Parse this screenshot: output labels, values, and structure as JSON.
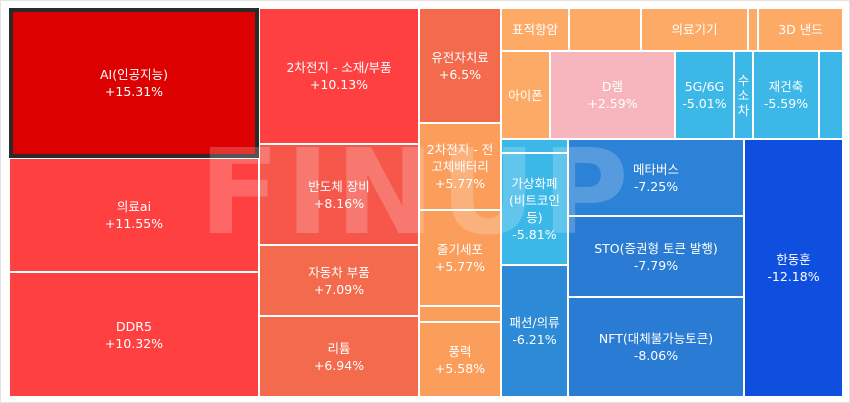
{
  "watermark": "FINUP",
  "chart_data": {
    "type": "treemap",
    "items": [
      {
        "label": "AI(인공지능)",
        "change": "+15.31%",
        "value": 15.31,
        "color": "#dd0000",
        "text": "#ffffff",
        "selected": true
      },
      {
        "label": "의료ai",
        "change": "+11.55%",
        "value": 11.55,
        "color": "#ff4040",
        "text": "#ffffff"
      },
      {
        "label": "DDR5",
        "change": "+10.32%",
        "value": 10.32,
        "color": "#ff4040",
        "text": "#ffffff"
      },
      {
        "label": "2차전지 - 소재/부품",
        "change": "+10.13%",
        "value": 10.13,
        "color": "#ff4040",
        "text": "#ffffff"
      },
      {
        "label": "반도체 장비",
        "change": "+8.16%",
        "value": 8.16,
        "color": "#f6574a",
        "text": "#ffffff"
      },
      {
        "label": "자동차 부품",
        "change": "+7.09%",
        "value": 7.09,
        "color": "#f46a4c",
        "text": "#ffffff"
      },
      {
        "label": "리튬",
        "change": "+6.94%",
        "value": 6.94,
        "color": "#f46a4c",
        "text": "#ffffff"
      },
      {
        "label": "유전자치료",
        "change": "+6.5%",
        "value": 6.5,
        "color": "#f46a4c",
        "text": "#ffffff"
      },
      {
        "label": "2차전지 - 전고체배터리",
        "change": "+5.77%",
        "value": 5.77,
        "color": "#fb9e5c",
        "text": "#ffffff"
      },
      {
        "label": "줄기세포",
        "change": "+5.77%",
        "value": 5.77,
        "color": "#fb9e5c",
        "text": "#ffffff"
      },
      {
        "label": "",
        "change": "",
        "value": null,
        "color": "#fb9e5c",
        "text": "#ffffff"
      },
      {
        "label": "풍력",
        "change": "+5.58%",
        "value": 5.58,
        "color": "#fb9e5c",
        "text": "#ffffff"
      },
      {
        "label": "표적항암",
        "change": "",
        "value": null,
        "color": "#fcaa66",
        "text": "#ffffff"
      },
      {
        "label": "",
        "change": "",
        "value": null,
        "color": "#fcaa66",
        "text": "#ffffff"
      },
      {
        "label": "의료기기",
        "change": "",
        "value": null,
        "color": "#fcaa66",
        "text": "#ffffff"
      },
      {
        "label": "",
        "change": "",
        "value": null,
        "color": "#fcaa66",
        "text": "#ffffff"
      },
      {
        "label": "3D 낸드",
        "change": "",
        "value": null,
        "color": "#fcaa66",
        "text": "#ffffff"
      },
      {
        "label": "아이폰",
        "change": "",
        "value": null,
        "color": "#fcaa66",
        "text": "#ffffff"
      },
      {
        "label": "D램",
        "change": "+2.59%",
        "value": 2.59,
        "color": "#f7b6bd",
        "text": "#ffffff"
      },
      {
        "label": "5G/6G",
        "change": "-5.01%",
        "value": -5.01,
        "color": "#3bb8e8",
        "text": "#ffffff"
      },
      {
        "label": "수소차",
        "change": "",
        "value": null,
        "color": "#3bb8e8",
        "text": "#ffffff"
      },
      {
        "label": "재건축",
        "change": "-5.59%",
        "value": -5.59,
        "color": "#3bb8e8",
        "text": "#ffffff"
      },
      {
        "label": "",
        "change": "",
        "value": null,
        "color": "#3bb8e8",
        "text": "#ffffff"
      },
      {
        "label": "가상화폐(비트코인 등)",
        "change": "-5.81%",
        "value": -5.81,
        "color": "#3bb8e8",
        "text": "#ffffff"
      },
      {
        "label": "",
        "change": "",
        "value": null,
        "color": "#3bb8e8",
        "text": "#ffffff"
      },
      {
        "label": "패션/의류",
        "change": "-6.21%",
        "value": -6.21,
        "color": "#2c8ad6",
        "text": "#ffffff"
      },
      {
        "label": "메타버스",
        "change": "-7.25%",
        "value": -7.25,
        "color": "#2c82d6",
        "text": "#ffffff"
      },
      {
        "label": "STO(증권형 토큰 발행)",
        "change": "-7.79%",
        "value": -7.79,
        "color": "#2a7bd4",
        "text": "#ffffff"
      },
      {
        "label": "NFT(대체불가능토큰)",
        "change": "-8.06%",
        "value": -8.06,
        "color": "#2a7bd4",
        "text": "#ffffff"
      },
      {
        "label": "한동훈",
        "change": "-12.18%",
        "value": -12.18,
        "color": "#0f4fe0",
        "text": "#ffffff"
      }
    ]
  }
}
